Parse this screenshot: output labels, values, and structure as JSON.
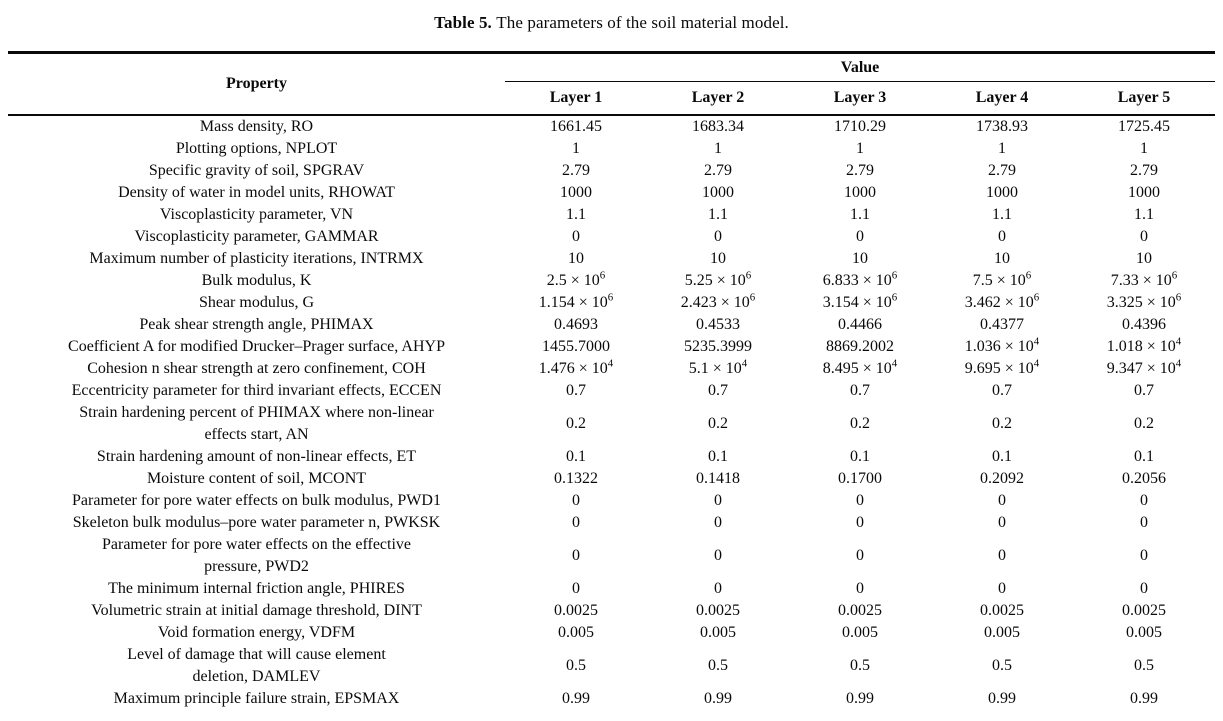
{
  "caption": {
    "label": "Table 5.",
    "text": "The parameters of the soil material model."
  },
  "table": {
    "property_header": "Property",
    "value_header": "Value",
    "layer_headers": [
      "Layer 1",
      "Layer 2",
      "Layer 3",
      "Layer 4",
      "Layer 5"
    ],
    "rows": [
      {
        "property": "Mass density, RO",
        "values": [
          "1661.45",
          "1683.34",
          "1710.29",
          "1738.93",
          "1725.45"
        ]
      },
      {
        "property": "Plotting options, NPLOT",
        "values": [
          "1",
          "1",
          "1",
          "1",
          "1"
        ]
      },
      {
        "property": "Specific gravity of soil, SPGRAV",
        "values": [
          "2.79",
          "2.79",
          "2.79",
          "2.79",
          "2.79"
        ]
      },
      {
        "property": "Density of water in model units, RHOWAT",
        "values": [
          "1000",
          "1000",
          "1000",
          "1000",
          "1000"
        ]
      },
      {
        "property": "Viscoplasticity parameter, VN",
        "values": [
          "1.1",
          "1.1",
          "1.1",
          "1.1",
          "1.1"
        ]
      },
      {
        "property": "Viscoplasticity parameter, GAMMAR",
        "values": [
          "0",
          "0",
          "0",
          "0",
          "0"
        ]
      },
      {
        "property": "Maximum number of plasticity iterations, INTRMX",
        "values": [
          "10",
          "10",
          "10",
          "10",
          "10"
        ]
      },
      {
        "property": "Bulk modulus, K",
        "values": [
          "2.5 × 10^6",
          "5.25 × 10^6",
          "6.833 × 10^6",
          "7.5 × 10^6",
          "7.33 × 10^6"
        ]
      },
      {
        "property": "Shear modulus, G",
        "values": [
          "1.154 × 10^6",
          "2.423 × 10^6",
          "3.154 × 10^6",
          "3.462 × 10^6",
          "3.325 × 10^6"
        ]
      },
      {
        "property": "Peak shear strength angle, PHIMAX",
        "values": [
          "0.4693",
          "0.4533",
          "0.4466",
          "0.4377",
          "0.4396"
        ]
      },
      {
        "property": "Coefficient A for modified Drucker–Prager surface, AHYP",
        "values": [
          "1455.7000",
          "5235.3999",
          "8869.2002",
          "1.036 × 10^4",
          "1.018 × 10^4"
        ]
      },
      {
        "property": "Cohesion n shear strength at zero confinement, COH",
        "values": [
          "1.476 × 10^4",
          "5.1 × 10^4",
          "8.495 × 10^4",
          "9.695 × 10^4",
          "9.347 × 10^4"
        ]
      },
      {
        "property": "Eccentricity parameter for third invariant effects, ECCEN",
        "values": [
          "0.7",
          "0.7",
          "0.7",
          "0.7",
          "0.7"
        ]
      },
      {
        "property": "Strain hardening percent of PHIMAX where non-linear\neffects start, AN",
        "values": [
          "0.2",
          "0.2",
          "0.2",
          "0.2",
          "0.2"
        ]
      },
      {
        "property": "Strain hardening amount of non-linear effects, ET",
        "values": [
          "0.1",
          "0.1",
          "0.1",
          "0.1",
          "0.1"
        ]
      },
      {
        "property": "Moisture content of soil, MCONT",
        "values": [
          "0.1322",
          "0.1418",
          "0.1700",
          "0.2092",
          "0.2056"
        ]
      },
      {
        "property": "Parameter for pore water effects on bulk modulus, PWD1",
        "values": [
          "0",
          "0",
          "0",
          "0",
          "0"
        ]
      },
      {
        "property": "Skeleton bulk modulus–pore water parameter n, PWKSK",
        "values": [
          "0",
          "0",
          "0",
          "0",
          "0"
        ]
      },
      {
        "property": "Parameter for pore water effects on the effective\npressure, PWD2",
        "values": [
          "0",
          "0",
          "0",
          "0",
          "0"
        ]
      },
      {
        "property": "The minimum internal friction angle, PHIRES",
        "values": [
          "0",
          "0",
          "0",
          "0",
          "0"
        ]
      },
      {
        "property": "Volumetric strain at initial damage threshold, DINT",
        "values": [
          "0.0025",
          "0.0025",
          "0.0025",
          "0.0025",
          "0.0025"
        ]
      },
      {
        "property": "Void formation energy, VDFM",
        "values": [
          "0.005",
          "0.005",
          "0.005",
          "0.005",
          "0.005"
        ]
      },
      {
        "property": "Level of damage that will cause element\ndeletion, DAMLEV",
        "values": [
          "0.5",
          "0.5",
          "0.5",
          "0.5",
          "0.5"
        ]
      },
      {
        "property": "Maximum principle failure strain, EPSMAX",
        "values": [
          "0.99",
          "0.99",
          "0.99",
          "0.99",
          "0.99"
        ]
      }
    ]
  }
}
